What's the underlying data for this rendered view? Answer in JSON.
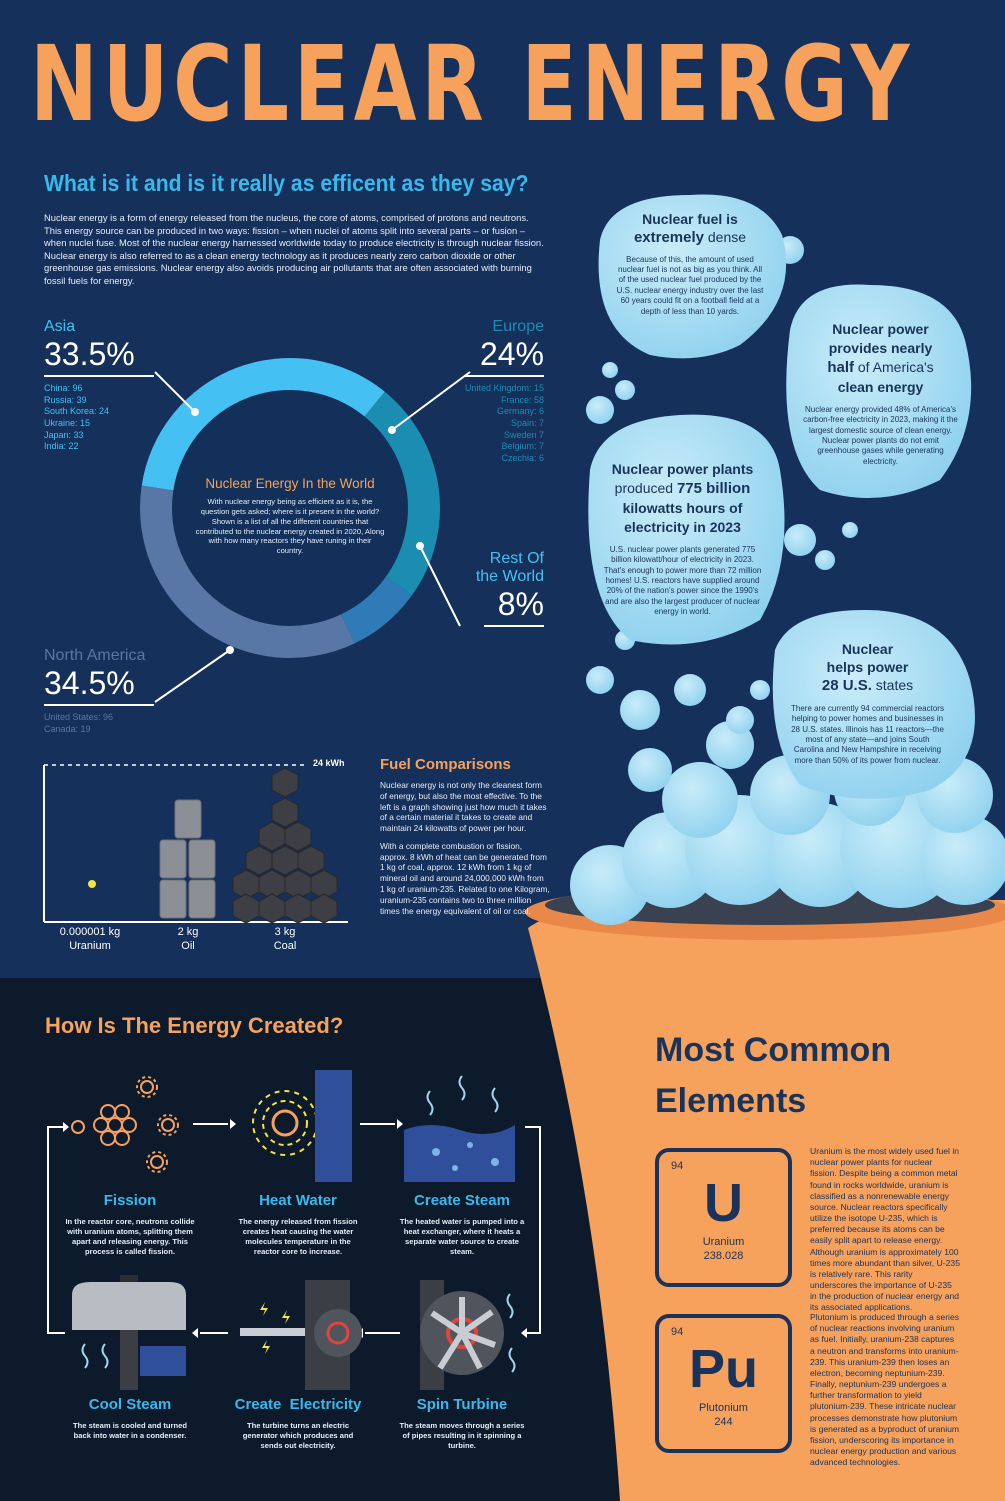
{
  "title": "NUCLEAR ENERGY",
  "subtitle": "What is it and is it really as efficent as they say?",
  "intro": "Nuclear energy is a form of energy released from the nucleus, the core of atoms, comprised of protons and neutrons. This energy source can be produced in two ways: fission – when nuclei of atoms split into several parts – or fusion – when nuclei fuse. Most of the nuclear energy harnessed worldwide today to produce electricity is through nuclear fission. Nuclear energy is also referred to as a clean energy technology as it produces nearly zero carbon dioxide or other greenhouse gas emissions. Nuclear energy also avoids producing air pollutants that are often associated with burning fossil fuels for energy.",
  "colors": {
    "orange": "#f6a15c",
    "cyan": "#38b9ec",
    "navy": "#15305a",
    "dark": "#0c1a2c",
    "bubble": "#a6ddf2"
  },
  "world": {
    "title": "Nuclear Energy In the World",
    "body": "With nuclear energy being as efficient as it is, the question gets asked; where is it present in the world? Shown is a list of all the different countries that contributed to the nuclear energy created in 2020, Along with how many reactors they have runing in their country.",
    "regions": [
      {
        "name": "Asia",
        "pct": "33.5%",
        "share": 33.5,
        "color": "#44c1f2",
        "list": [
          "China: 96",
          "Russia: 39",
          "South Korea: 24",
          "Ukraine: 15",
          "Japan: 33",
          "India: 22"
        ]
      },
      {
        "name": "Europe",
        "pct": "24%",
        "share": 24,
        "color": "#1b8db0",
        "list": [
          "United Kingdom: 15",
          "France: 58",
          "Germany: 6",
          "Spain: 7",
          "Sweden 7",
          "Belgium: 7",
          "Czechia: 6"
        ]
      },
      {
        "name_lines": [
          "Rest Of",
          "the World"
        ],
        "pct": "8%",
        "share": 8,
        "color": "#2f7bb8"
      },
      {
        "name": "North America",
        "pct": "34.5%",
        "share": 34.5,
        "color": "#5877a6",
        "list": [
          "United States: 96",
          "Canada: 19"
        ]
      }
    ]
  },
  "fuel": {
    "title": "Fuel Comparisons",
    "p1": "Nuclear energy is not only the cleanest form of energy, but also the most effective. To the left is a graph showing just how much it takes of a certain material it takes to create and maintain 24 kilowatts of power per hour.",
    "p2": "With a complete combustion or fission, approx. 8 kWh of heat can be generated from 1 kg of coal, approx. 12 kWh from 1 kg of mineral oil and around 24,000,000 kWh from 1 kg of uranium-235. Related to one Kilogram, uranium-235 contains two to three million times the energy equivalent of oil or coal.",
    "kwh": "24 kWh",
    "items": [
      {
        "amount": "0.000001 kg",
        "name": "Uranium"
      },
      {
        "amount": "2 kg",
        "name": "Oil"
      },
      {
        "amount": "3 kg",
        "name": "Coal"
      }
    ]
  },
  "bubbles": [
    {
      "title_pre": "Nuclear fuel is",
      "title_bold": "extremely",
      "title_post": "dense",
      "body": "Because of this, the amount of used nuclear fuel is not as big as you think. All of the used nuclear fuel produced by the U.S. nuclear energy industry over the last 60 years could fit on a football field at a depth of less than 10 yards."
    },
    {
      "title_lines": [
        "Nuclear power",
        "provides nearly"
      ],
      "title_bold": "half",
      "title_post": "of America's",
      "title_last": "clean energy",
      "body": "Nuclear energy provided 48% of America's carbon-free electricity in 2023, making it the largest domestic source of clean energy. Nuclear power plants do not emit greenhouse gases while generating electricity."
    },
    {
      "title_lines": [
        "Nuclear power plants"
      ],
      "title_pre": "produced",
      "title_bold": "775 billion",
      "title_more": [
        "kilowatts hours of",
        "electricity in 2023"
      ],
      "body": "U.S. nuclear power plants generated 775 billion kilowatt/hour of electricity in 2023. That's enough to power more than 72 million homes! U.S. reactors have supplied around 20% of the nation's power since the 1990's and are also the largest producer of nuclear energy in world."
    },
    {
      "title_lines": [
        "Nuclear",
        "helps power"
      ],
      "title_bold": "28 U.S.",
      "title_post": "states",
      "body": "There are currently 94 commercial reactors helping to power homes and businesses in 28 U.S. states. Illinois has 11 reactors—the most of any state—and joins South Carolina and New Hampshire in receiving more than 50% of its power from nuclear."
    }
  ],
  "process": {
    "title": "How Is The Energy Created?",
    "steps": [
      {
        "title": "Fission",
        "body": "In the reactor core, neutrons collide with uranium atoms, splitting them apart and releasing energy. This process is called fission."
      },
      {
        "title": "Heat Water",
        "body": "The energy released from fission creates heat causing the water molecules temperature in the reactor core to increase."
      },
      {
        "title": "Create Steam",
        "body": "The heated water is pumped into a heat exchanger, where it heats a separate water source to create steam."
      },
      {
        "title": "Spin Turbine",
        "body": "The steam moves through a series of pipes resulting in it spinning a turbine."
      },
      {
        "title": "Create  Electricity",
        "body": "The turbine turns an electric generator which produces and sends out electricity."
      },
      {
        "title": "Cool Steam",
        "body": "The steam is cooled and turned back into water in a condenser."
      }
    ]
  },
  "elements": {
    "title_lines": [
      "Most Common",
      "Elements"
    ],
    "items": [
      {
        "number": "94",
        "symbol": "U",
        "name": "Uranium",
        "mass": "238.028",
        "body": "Uranium is the most widely used fuel in nuclear power plants for nuclear fission. Despite being a common metal found in rocks worldwide, uranium is classified as a nonrenewable energy source. Nuclear reactors specifically utilize the isotope U-235, which is preferred because its atoms can be easily split apart to release energy. Although uranium is approximately 100 times more abundant than silver, U-235 is relatively rare. This rarity underscores the importance of U-235 in the production of nuclear energy and its associated applications."
      },
      {
        "number": "94",
        "symbol": "Pu",
        "name": "Plutonium",
        "mass": "244",
        "body": "Plutonium is produced through a series of nuclear reactions involving uranium as fuel. Initially, uranium-238 captures a neutron and transforms into uranium-239. This uranium-239 then loses an electron, becoming neptunium-239. Finally, neptunium-239 undergoes a further transformation to yield plutonium-239. These intricate nuclear processes demonstrate how plutonium is generated as a byproduct of uranium fission, underscoring its importance in nuclear energy production and various advanced technologies."
      }
    ]
  }
}
